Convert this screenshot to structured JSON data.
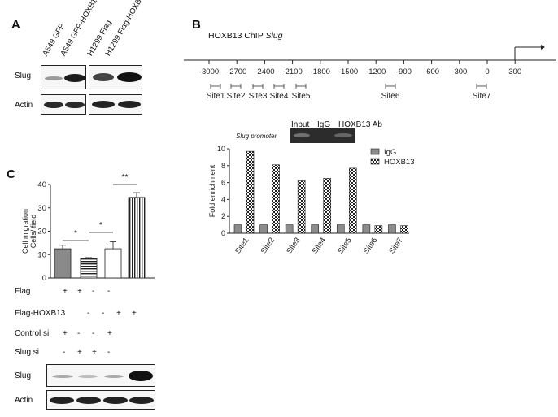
{
  "panelA": {
    "letter": "A",
    "columns": [
      "A549 GFP",
      "A549 GFP-HOXB13",
      "H1299 Flag",
      "H1299 Flag-HOXB13"
    ],
    "rows": [
      "Slug",
      "Actin"
    ]
  },
  "panelB": {
    "letter": "B",
    "title_prefix": "HOXB13 ChIP ",
    "title_gene": "Slug",
    "ticks": [
      "-3000",
      "-2700",
      "-2400",
      "-2100",
      "-1800",
      "-1500",
      "-1200",
      "-900",
      "-600",
      "-300",
      "0",
      "300"
    ],
    "sites": [
      "Site1",
      "Site2",
      "Site3",
      "Site4",
      "Site5",
      "Site6",
      "Site7"
    ],
    "gel_caption": "Slug promoter",
    "gel_lanes": [
      "Input",
      "IgG",
      "HOXB13 Ab"
    ]
  },
  "chart_data": [
    {
      "type": "bar",
      "ylabel": "Fold enrichment",
      "ylim": [
        0,
        10
      ],
      "yticks": [
        "0",
        "2",
        "4",
        "6",
        "8",
        "10"
      ],
      "categories": [
        "Site1",
        "Site2",
        "Site3",
        "Site4",
        "Site5",
        "Site6",
        "Site7"
      ],
      "series": [
        {
          "name": "IgG",
          "values": [
            1,
            1,
            1,
            1,
            1,
            1,
            1
          ]
        },
        {
          "name": "HOXB13",
          "values": [
            9.7,
            8.1,
            6.2,
            6.5,
            7.7,
            0.9,
            0.9
          ]
        }
      ],
      "legend": "top-right"
    },
    {
      "type": "bar",
      "ylabel": "Cell migration\nCells/ field",
      "ylim": [
        0,
        40
      ],
      "yticks": [
        "0",
        "10",
        "20",
        "30",
        "40"
      ],
      "values": [
        12.5,
        8.2,
        12.5,
        34.5
      ],
      "errors": [
        1.5,
        0.5,
        3,
        2
      ],
      "significance": [
        "*",
        "*",
        "**"
      ]
    }
  ],
  "panelC": {
    "letter": "C",
    "ylabel_line1": "Cell migration",
    "ylabel_line2": "Cells/ field",
    "conditions": [
      {
        "label": "Flag",
        "signs": [
          "+",
          "+",
          "-",
          "-"
        ]
      },
      {
        "label": "Flag-HOXB13",
        "signs": [
          "-",
          "-",
          "+",
          "+"
        ]
      },
      {
        "label": "Control si",
        "signs": [
          "+",
          "-",
          "-",
          "+"
        ]
      },
      {
        "label": "Slug si",
        "signs": [
          "-",
          "+",
          "+",
          "-"
        ]
      }
    ],
    "rows": [
      "Slug",
      "Actin"
    ]
  }
}
